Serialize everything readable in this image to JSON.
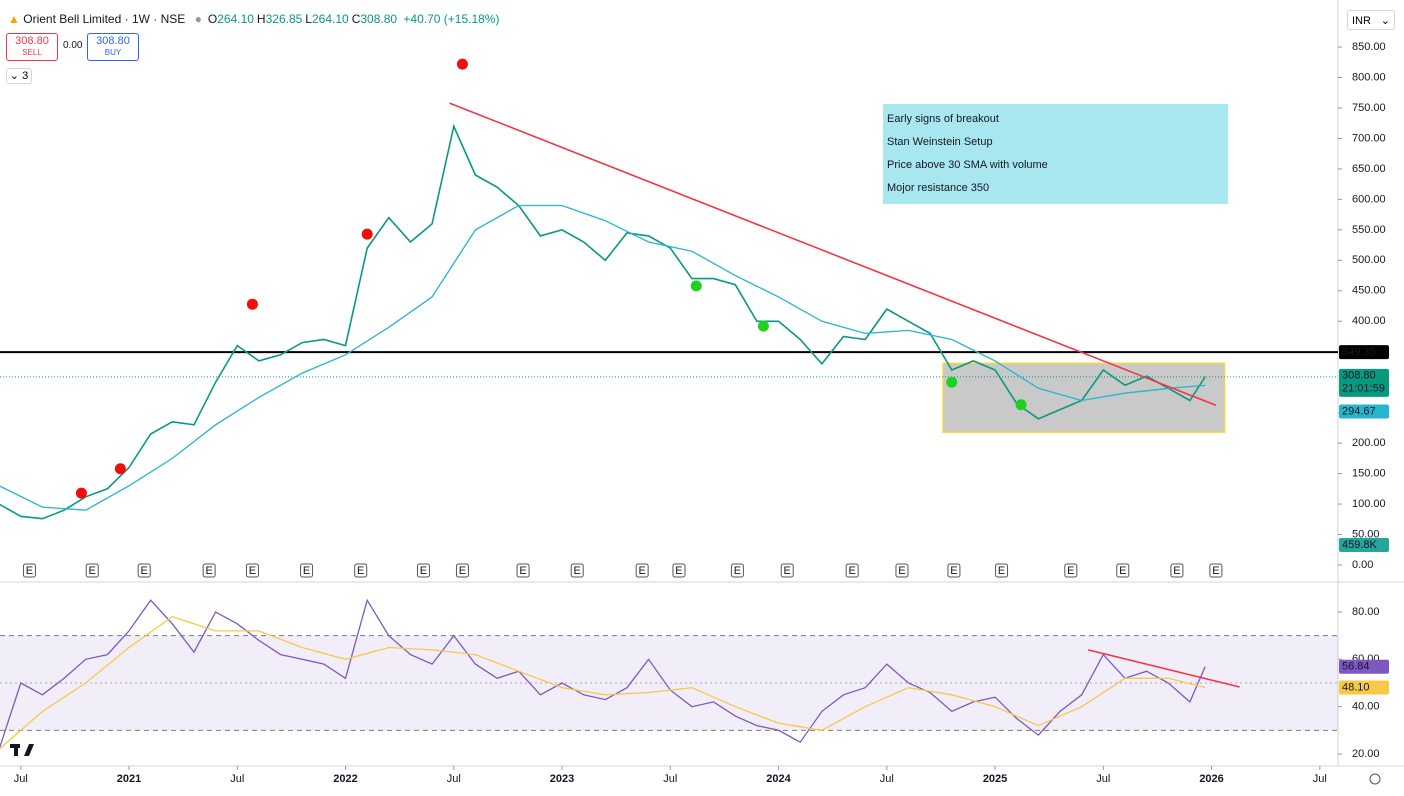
{
  "header": {
    "symbol": "Orient Bell Limited · 1W · NSE",
    "ohlc": [
      {
        "key": "O",
        "value": "264.10"
      },
      {
        "key": "H",
        "value": "326.85"
      },
      {
        "key": "L",
        "value": "264.10"
      },
      {
        "key": "C",
        "value": "308.80"
      }
    ],
    "change": "+40.70 (+15.18%)",
    "sell_price": "308.80",
    "sell": "SELL",
    "spread": "0.00",
    "buy_price": "308.80",
    "buy": "BUY",
    "indicators_count": "3",
    "currency": "INR"
  },
  "chart_data": [
    {
      "type": "line",
      "xlim": [
        2020.404,
        2026.584
      ],
      "ylim": [
        -27.9,
        927.2
      ],
      "yticks": [
        {
          "value": 850,
          "label": "850.00"
        },
        {
          "value": 800,
          "label": "800.00"
        },
        {
          "value": 750,
          "label": "750.00"
        },
        {
          "value": 700,
          "label": "700.00"
        },
        {
          "value": 650,
          "label": "650.00"
        },
        {
          "value": 600,
          "label": "600.00"
        },
        {
          "value": 550,
          "label": "550.00"
        },
        {
          "value": 500,
          "label": "500.00"
        },
        {
          "value": 450,
          "label": "450.00"
        },
        {
          "value": 400,
          "label": "400.00"
        },
        {
          "value": 250,
          "label": "250.00"
        },
        {
          "value": 200,
          "label": "200.00"
        },
        {
          "value": 150,
          "label": "150.00"
        },
        {
          "value": 100,
          "label": "100.00"
        },
        {
          "value": 50,
          "label": "50.00"
        },
        {
          "value": 0,
          "label": "0.00"
        }
      ],
      "x": [
        2020.4,
        2020.5,
        2020.6,
        2020.7,
        2020.8,
        2020.9,
        2021.0,
        2021.1,
        2021.2,
        2021.3,
        2021.4,
        2021.5,
        2021.6,
        2021.7,
        2021.8,
        2021.9,
        2022.0,
        2022.1,
        2022.2,
        2022.3,
        2022.4,
        2022.5,
        2022.6,
        2022.7,
        2022.8,
        2022.9,
        2023.0,
        2023.1,
        2023.2,
        2023.3,
        2023.4,
        2023.5,
        2023.6,
        2023.7,
        2023.8,
        2023.9,
        2024.0,
        2024.1,
        2024.2,
        2024.3,
        2024.4,
        2024.5,
        2024.6,
        2024.7,
        2024.8,
        2024.9,
        2025.0,
        2025.1,
        2025.2,
        2025.3,
        2025.4,
        2025.5,
        2025.6,
        2025.7,
        2025.8,
        2025.9,
        2025.97
      ],
      "series": [
        {
          "color": "#089981",
          "values": [
            100,
            80,
            76,
            90,
            112,
            125,
            160,
            215,
            235,
            230,
            300,
            360,
            335,
            345,
            365,
            370,
            360,
            520,
            570,
            530,
            560,
            720,
            640,
            620,
            590,
            540,
            550,
            530,
            500,
            545,
            540,
            520,
            470,
            470,
            460,
            400,
            400,
            370,
            330,
            375,
            370,
            420,
            400,
            380,
            320,
            335,
            320,
            265,
            240,
            255,
            270,
            320,
            295,
            310,
            290,
            270,
            308.8
          ]
        },
        {
          "color": "#26b5cc",
          "x": [
            2020.4,
            2020.6,
            2020.8,
            2021.0,
            2021.2,
            2021.4,
            2021.6,
            2021.8,
            2022.0,
            2022.2,
            2022.4,
            2022.6,
            2022.8,
            2023.0,
            2023.2,
            2023.4,
            2023.6,
            2023.8,
            2024.0,
            2024.2,
            2024.4,
            2024.6,
            2024.8,
            2025.0,
            2025.2,
            2025.4,
            2025.6,
            2025.8,
            2025.97
          ],
          "values": [
            130,
            95,
            90,
            130,
            175,
            230,
            275,
            315,
            345,
            390,
            440,
            550,
            590,
            590,
            565,
            530,
            515,
            475,
            440,
            400,
            380,
            385,
            370,
            335,
            290,
            270,
            282,
            290,
            294.67
          ]
        }
      ],
      "highs_marked": {
        "color": "#f20d0d",
        "x": [
          2020.78,
          2020.96,
          2021.57,
          2022.1,
          2022.54
        ],
        "values": [
          118,
          158,
          428,
          543,
          822
        ]
      },
      "lows_marked": {
        "color": "#1fd11f",
        "x": [
          2023.62,
          2023.93,
          2024.8,
          2025.12
        ],
        "values": [
          458,
          392,
          300,
          263
        ]
      },
      "trendline": {
        "color": "#f23645",
        "x": [
          2022.48,
          2026.02
        ],
        "values": [
          758,
          262
        ]
      },
      "resistance": {
        "value": 349.35,
        "color": "#000000"
      },
      "range_box": {
        "x": [
          2024.76,
          2026.06
        ],
        "values": [
          331,
          218
        ]
      },
      "annotation": [
        "Early signs of breakout",
        "Stan Weinstein Setup",
        "Price above 30 SMA with volume",
        "Mojor resistance 350"
      ],
      "last_price": {
        "value": 308.8,
        "label": "308.80"
      },
      "countdown": "21:01:59",
      "volume_last": "459.8K",
      "earnings": {
        "label": "E",
        "x": [
          2020.54,
          2020.83,
          2021.07,
          2021.37,
          2021.57,
          2021.82,
          2022.07,
          2022.36,
          2022.54,
          2022.82,
          2023.07,
          2023.37,
          2023.54,
          2023.81,
          2024.04,
          2024.34,
          2024.57,
          2024.81,
          2025.03,
          2025.35,
          2025.59,
          2025.84,
          2026.02
        ]
      }
    },
    {
      "type": "line",
      "xlim": [
        2020.404,
        2026.584
      ],
      "ylim": [
        14.93,
        92.67
      ],
      "yticks": [
        {
          "value": 80,
          "label": "80.00"
        },
        {
          "value": 60,
          "label": "60.00"
        },
        {
          "value": 40,
          "label": "40.00"
        },
        {
          "value": 20,
          "label": "20.00"
        }
      ],
      "bands": [
        70,
        30
      ],
      "midline": 50,
      "xticks": [
        {
          "value": 2020.5,
          "label": "Jul"
        },
        2021,
        {
          "value": 2021.5,
          "label": "Jul"
        },
        2022,
        {
          "value": 2022.5,
          "label": "Jul"
        },
        2023,
        {
          "value": 2023.5,
          "label": "Jul"
        },
        2024,
        {
          "value": 2024.5,
          "label": "Jul"
        },
        2025,
        {
          "value": 2025.5,
          "label": "Jul"
        },
        2026,
        {
          "value": 2026.5,
          "label": "Jul"
        }
      ],
      "x": [
        2020.4,
        2020.5,
        2020.6,
        2020.7,
        2020.8,
        2020.9,
        2021.0,
        2021.1,
        2021.2,
        2021.3,
        2021.4,
        2021.5,
        2021.6,
        2021.7,
        2021.8,
        2021.9,
        2022.0,
        2022.1,
        2022.2,
        2022.3,
        2022.4,
        2022.5,
        2022.6,
        2022.7,
        2022.8,
        2022.9,
        2023.0,
        2023.1,
        2023.2,
        2023.3,
        2023.4,
        2023.5,
        2023.6,
        2023.7,
        2023.8,
        2023.9,
        2024.0,
        2024.1,
        2024.2,
        2024.3,
        2024.4,
        2024.5,
        2024.6,
        2024.7,
        2024.8,
        2024.9,
        2025.0,
        2025.1,
        2025.2,
        2025.3,
        2025.4,
        2025.5,
        2025.6,
        2025.7,
        2025.8,
        2025.9,
        2025.97
      ],
      "series": [
        {
          "color": "#7e57c2",
          "values": [
            22,
            50,
            45,
            52,
            60,
            62,
            72,
            85,
            75,
            63,
            80,
            75,
            68,
            62,
            60,
            58,
            52,
            85,
            70,
            62,
            58,
            70,
            58,
            52,
            55,
            45,
            50,
            45,
            43,
            48,
            60,
            47,
            40,
            42,
            36,
            32,
            30,
            25,
            38,
            45,
            48,
            58,
            50,
            46,
            38,
            42,
            44,
            35,
            28,
            38,
            45,
            62,
            52,
            55,
            50,
            42,
            56.84
          ]
        },
        {
          "color": "#f7c948",
          "x": [
            2020.4,
            2020.6,
            2020.8,
            2021.0,
            2021.2,
            2021.4,
            2021.6,
            2021.8,
            2022.0,
            2022.2,
            2022.4,
            2022.6,
            2022.8,
            2023.0,
            2023.2,
            2023.4,
            2023.6,
            2023.8,
            2024.0,
            2024.2,
            2024.4,
            2024.6,
            2024.8,
            2025.0,
            2025.2,
            2025.4,
            2025.6,
            2025.8,
            2025.97
          ],
          "values": [
            22,
            38,
            50,
            65,
            78,
            72,
            72,
            65,
            60,
            65,
            64,
            62,
            55,
            48,
            45,
            46,
            48,
            40,
            33,
            30,
            40,
            48,
            45,
            40,
            32,
            40,
            52,
            52,
            48.1
          ],
          "last_label": "48.10"
        }
      ],
      "trendline": {
        "color": "#f23645",
        "x": [
          2025.43,
          2026.13
        ],
        "values": [
          64,
          48.3
        ]
      }
    }
  ]
}
